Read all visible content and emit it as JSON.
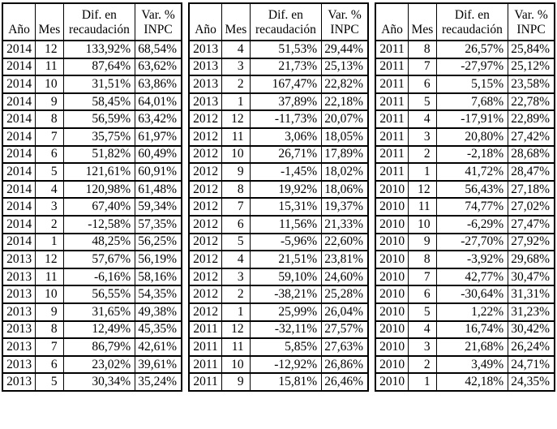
{
  "page": {
    "background_color": "#ffffff",
    "border_color": "#000000",
    "text_color": "#000000"
  },
  "columns": {
    "year_label": "Año",
    "month_label": "Mes",
    "diff_label_line1": "Dif. en",
    "diff_label_line2": "recaudación",
    "var_label_line1": "Var. %",
    "var_label_line2": "INPC"
  },
  "tables": [
    {
      "name": "table-left",
      "rows": [
        [
          "2014",
          "12",
          "133,92%",
          "68,54%"
        ],
        [
          "2014",
          "11",
          "87,64%",
          "63,62%"
        ],
        [
          "2014",
          "10",
          "31,51%",
          "63,86%"
        ],
        [
          "2014",
          "9",
          "58,45%",
          "64,01%"
        ],
        [
          "2014",
          "8",
          "56,59%",
          "63,42%"
        ],
        [
          "2014",
          "7",
          "35,75%",
          "61,97%"
        ],
        [
          "2014",
          "6",
          "51,82%",
          "60,49%"
        ],
        [
          "2014",
          "5",
          "121,61%",
          "60,91%"
        ],
        [
          "2014",
          "4",
          "120,98%",
          "61,48%"
        ],
        [
          "2014",
          "3",
          "67,40%",
          "59,34%"
        ],
        [
          "2014",
          "2",
          "-12,58%",
          "57,35%"
        ],
        [
          "2014",
          "1",
          "48,25%",
          "56,25%"
        ],
        [
          "2013",
          "12",
          "57,67%",
          "56,19%"
        ],
        [
          "2013",
          "11",
          "-6,16%",
          "58,16%"
        ],
        [
          "2013",
          "10",
          "56,55%",
          "54,35%"
        ],
        [
          "2013",
          "9",
          "31,65%",
          "49,38%"
        ],
        [
          "2013",
          "8",
          "12,49%",
          "45,35%"
        ],
        [
          "2013",
          "7",
          "86,79%",
          "42,61%"
        ],
        [
          "2013",
          "6",
          "23,02%",
          "39,61%"
        ],
        [
          "2013",
          "5",
          "30,34%",
          "35,24%"
        ]
      ]
    },
    {
      "name": "table-middle",
      "rows": [
        [
          "2013",
          "4",
          "51,53%",
          "29,44%"
        ],
        [
          "2013",
          "3",
          "21,73%",
          "25,13%"
        ],
        [
          "2013",
          "2",
          "167,47%",
          "22,82%"
        ],
        [
          "2013",
          "1",
          "37,89%",
          "22,18%"
        ],
        [
          "2012",
          "12",
          "-11,73%",
          "20,07%"
        ],
        [
          "2012",
          "11",
          "3,06%",
          "18,05%"
        ],
        [
          "2012",
          "10",
          "26,71%",
          "17,89%"
        ],
        [
          "2012",
          "9",
          "-1,45%",
          "18,02%"
        ],
        [
          "2012",
          "8",
          "19,92%",
          "18,06%"
        ],
        [
          "2012",
          "7",
          "15,31%",
          "19,37%"
        ],
        [
          "2012",
          "6",
          "11,56%",
          "21,33%"
        ],
        [
          "2012",
          "5",
          "-5,96%",
          "22,60%"
        ],
        [
          "2012",
          "4",
          "21,51%",
          "23,81%"
        ],
        [
          "2012",
          "3",
          "59,10%",
          "24,60%"
        ],
        [
          "2012",
          "2",
          "-38,21%",
          "25,28%"
        ],
        [
          "2012",
          "1",
          "25,99%",
          "26,04%"
        ],
        [
          "2011",
          "12",
          "-32,11%",
          "27,57%"
        ],
        [
          "2011",
          "11",
          "5,85%",
          "27,63%"
        ],
        [
          "2011",
          "10",
          "-12,92%",
          "26,86%"
        ],
        [
          "2011",
          "9",
          "15,81%",
          "26,46%"
        ]
      ]
    },
    {
      "name": "table-right",
      "rows": [
        [
          "2011",
          "8",
          "26,57%",
          "25,84%"
        ],
        [
          "2011",
          "7",
          "-27,97%",
          "25,12%"
        ],
        [
          "2011",
          "6",
          "5,15%",
          "23,58%"
        ],
        [
          "2011",
          "5",
          "7,68%",
          "22,78%"
        ],
        [
          "2011",
          "4",
          "-17,91%",
          "22,89%"
        ],
        [
          "2011",
          "3",
          "20,80%",
          "27,42%"
        ],
        [
          "2011",
          "2",
          "-2,18%",
          "28,68%"
        ],
        [
          "2011",
          "1",
          "41,72%",
          "28,47%"
        ],
        [
          "2010",
          "12",
          "56,43%",
          "27,18%"
        ],
        [
          "2010",
          "11",
          "74,77%",
          "27,02%"
        ],
        [
          "2010",
          "10",
          "-6,29%",
          "27,47%"
        ],
        [
          "2010",
          "9",
          "-27,70%",
          "27,92%"
        ],
        [
          "2010",
          "8",
          "-3,92%",
          "29,68%"
        ],
        [
          "2010",
          "7",
          "42,77%",
          "30,47%"
        ],
        [
          "2010",
          "6",
          "-30,64%",
          "31,31%"
        ],
        [
          "2010",
          "5",
          "1,22%",
          "31,23%"
        ],
        [
          "2010",
          "4",
          "16,74%",
          "30,42%"
        ],
        [
          "2010",
          "3",
          "21,68%",
          "26,24%"
        ],
        [
          "2010",
          "2",
          "3,49%",
          "24,71%"
        ],
        [
          "2010",
          "1",
          "42,18%",
          "24,35%"
        ]
      ]
    }
  ]
}
